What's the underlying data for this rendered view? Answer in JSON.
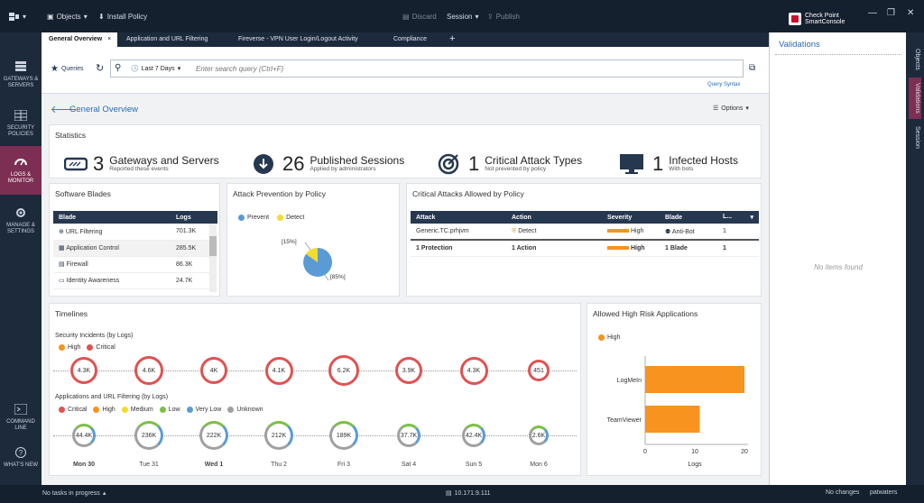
{
  "topbar": {
    "objects": "Objects",
    "install_policy": "Install Policy",
    "discard": "Discard",
    "session": "Session",
    "publish": "Publish",
    "logo_line1": "Check Point",
    "logo_line2": "SmartConsole"
  },
  "leftnav": [
    {
      "label": "GATEWAYS & SERVERS"
    },
    {
      "label": "SECURITY POLICIES"
    },
    {
      "label": "LOGS & MONITOR"
    },
    {
      "label": "MANAGE & SETTINGS"
    },
    {
      "label": "COMMAND LINE"
    },
    {
      "label": "WHAT'S NEW"
    }
  ],
  "tabs": [
    "General Overview",
    "Application and URL Filtering",
    "Fireverse - VPN User Login/Logout Activity",
    "Compliance"
  ],
  "query": {
    "queries": "Queries",
    "time": "Last 7 Days",
    "placeholder": "Enter search query (Ctrl+F)",
    "syntax": "Query Syntax"
  },
  "page": {
    "title": "General Overview",
    "options": "Options"
  },
  "stats": {
    "title": "Statistics",
    "items": [
      {
        "num": "3",
        "label": "Gateways and Servers",
        "sub": "Reported these events"
      },
      {
        "num": "26",
        "label": "Published Sessions",
        "sub": "Applied by administrators"
      },
      {
        "num": "1",
        "label": "Critical Attack Types",
        "sub": "Not prevented by policy"
      },
      {
        "num": "1",
        "label": "Infected Hosts",
        "sub": "With bots"
      }
    ]
  },
  "blades": {
    "title": "Software Blades",
    "col_blade": "Blade",
    "col_logs": "Logs",
    "rows": [
      {
        "name": "URL Filtering",
        "logs": "701.3K"
      },
      {
        "name": "Application Control",
        "logs": "285.5K"
      },
      {
        "name": "Firewall",
        "logs": "86.3K"
      },
      {
        "name": "Identity Awareness",
        "logs": "24.7K"
      }
    ]
  },
  "prevention": {
    "title": "Attack Prevention by Policy",
    "legend_prevent": "Prevent",
    "legend_detect": "Detect",
    "pct_detect": "[15%]",
    "pct_prevent": "[85%]"
  },
  "critical": {
    "title": "Critical Attacks Allowed by Policy",
    "cols": [
      "Attack",
      "Action",
      "Severity",
      "Blade",
      "L..."
    ],
    "rows": [
      {
        "attack": "Generic.TC.prhjvm",
        "action": "Detect",
        "severity": "High",
        "blade": "Anti-Bot",
        "l": "1"
      },
      {
        "attack": "1 Protection",
        "action": "1 Action",
        "severity": "High",
        "blade": "1 Blade",
        "l": "1"
      }
    ]
  },
  "timelines": {
    "title": "Timelines",
    "sec_title": "Security Incidents (by Logs)",
    "sec_legend": [
      "High",
      "Critical"
    ],
    "sec_values": [
      "4.3K",
      "4.6K",
      "4K",
      "4.1K",
      "6.2K",
      "3.9K",
      "4.3K",
      "451"
    ],
    "app_title": "Applications and URL Filtering (by Logs)",
    "app_legend": [
      "Critical",
      "High",
      "Medium",
      "Low",
      "Very Low",
      "Unknown"
    ],
    "app_values": [
      "44.4K",
      "236K",
      "222K",
      "212K",
      "189K",
      "37.7K",
      "42.4K",
      "2.6K"
    ],
    "days": [
      "Mon 30",
      "Tue 31",
      "Wed 1",
      "Thu 2",
      "Fri 3",
      "Sat 4",
      "Sun 5",
      "Mon 6"
    ]
  },
  "highrisk": {
    "title": "Allowed High Risk Applications",
    "legend": "High",
    "xlabel": "Logs"
  },
  "chart_data": {
    "type": "bar",
    "orientation": "horizontal",
    "categories": [
      "LogMeIn",
      "TeamViewer"
    ],
    "series": [
      {
        "name": "High",
        "values": [
          20,
          11
        ]
      }
    ],
    "xlabel": "Logs",
    "xlim": [
      0,
      20
    ],
    "xticks": [
      0,
      10,
      20
    ],
    "color": "#f7931e"
  },
  "validations": {
    "title": "Validations",
    "empty": "No items found"
  },
  "rightstrip": [
    "Objects",
    "Validations",
    "Session"
  ],
  "status": {
    "left": "No tasks in progress",
    "ip": "10.171.9.111",
    "changes": "No changes",
    "user": "patwaters"
  }
}
